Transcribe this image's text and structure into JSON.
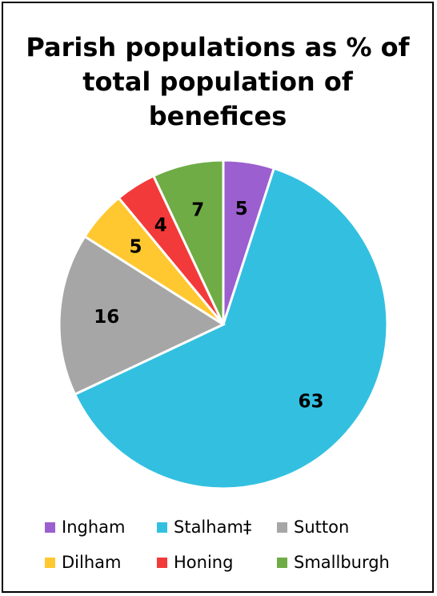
{
  "chart_data": {
    "type": "pie",
    "title": [
      "Parish populations as % of",
      "total population of",
      "benefices"
    ],
    "slices": [
      {
        "label": "Ingham",
        "value": 5,
        "color": "#9b5fcf"
      },
      {
        "label": "Stalham‡",
        "value": 63,
        "color": "#33c0e0"
      },
      {
        "label": "Sutton",
        "value": 16,
        "color": "#a6a6a6"
      },
      {
        "label": "Dilham",
        "value": 5,
        "color": "#ffc830"
      },
      {
        "label": "Honing",
        "value": 4,
        "color": "#f33a3a"
      },
      {
        "label": "Smallburgh",
        "value": 7,
        "color": "#6fac46"
      }
    ],
    "legend_position": "bottom"
  }
}
